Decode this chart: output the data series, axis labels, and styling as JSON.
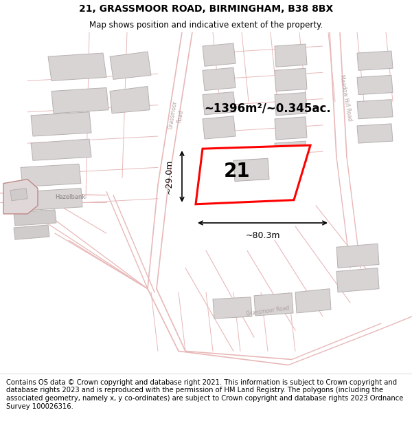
{
  "title_line1": "21, GRASSMOOR ROAD, BIRMINGHAM, B38 8BX",
  "title_line2": "Map shows position and indicative extent of the property.",
  "area_label": "~1396m²/~0.345ac.",
  "width_label": "~80.3m",
  "height_label": "~29.0m",
  "plot_number": "21",
  "footer_text": "Contains OS data © Crown copyright and database right 2021. This information is subject to Crown copyright and database rights 2023 and is reproduced with the permission of HM Land Registry. The polygons (including the associated geometry, namely x, y co-ordinates) are subject to Crown copyright and database rights 2023 Ordnance Survey 100026316.",
  "map_bg": "#f7f2f2",
  "building_fill": "#d8d4d4",
  "building_edge": "#b8b0b0",
  "road_line": "#e8b8b8",
  "highlight_color": "#ff0000",
  "highlight_fill": "#ffffff",
  "text_color": "#000000",
  "road_label_color": "#aaaaaa",
  "title_fontsize": 10,
  "subtitle_fontsize": 8.5,
  "footer_fontsize": 7.2
}
